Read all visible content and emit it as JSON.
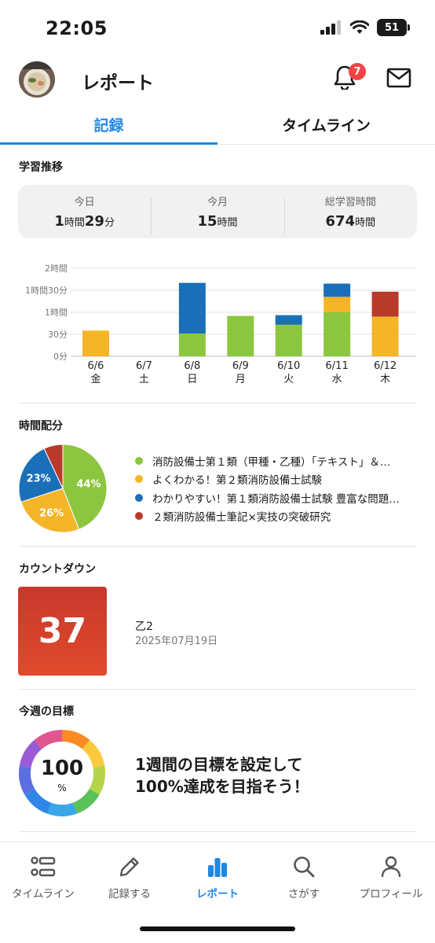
{
  "status_bar": {
    "time": "22:05",
    "battery": "51"
  },
  "header": {
    "title": "レポート",
    "notification_count": "7"
  },
  "tabs": [
    {
      "label": "記録",
      "active": true
    },
    {
      "label": "タイムライン",
      "active": false
    }
  ],
  "study_trend": {
    "title": "学習推移",
    "stats": [
      {
        "label": "今日",
        "parts": [
          "1",
          "時間",
          "29",
          "分"
        ]
      },
      {
        "label": "今月",
        "parts": [
          "15",
          "時間"
        ]
      },
      {
        "label": "総学習時間",
        "parts": [
          "674",
          "時間"
        ]
      }
    ]
  },
  "chart_data": {
    "type": "bar",
    "stacked": true,
    "categories": [
      "6/6",
      "6/7",
      "6/8",
      "6/9",
      "6/10",
      "6/11",
      "6/12"
    ],
    "day_labels": [
      "金",
      "土",
      "日",
      "月",
      "火",
      "水",
      "木"
    ],
    "y_unit": "minutes",
    "ylim": [
      0,
      120
    ],
    "y_ticks": [
      {
        "value": 0,
        "label": "0分"
      },
      {
        "value": 30,
        "label": "30分"
      },
      {
        "value": 60,
        "label": "1時間"
      },
      {
        "value": 90,
        "label": "1時間30分"
      },
      {
        "value": 120,
        "label": "2時間"
      }
    ],
    "series": [
      {
        "color": "#8cc63f",
        "values": [
          0,
          0,
          31,
          55,
          43,
          60,
          0
        ]
      },
      {
        "color": "#f5b528",
        "values": [
          35,
          0,
          0,
          0,
          0,
          21,
          54
        ]
      },
      {
        "color": "#1a6fb8",
        "values": [
          0,
          0,
          69,
          0,
          13,
          18,
          0
        ]
      },
      {
        "color": "#b73a2a",
        "values": [
          0,
          0,
          0,
          0,
          0,
          0,
          34
        ]
      }
    ]
  },
  "time_distribution": {
    "title": "時間配分",
    "slices": [
      {
        "label": "消防設備士第１類（甲種・乙種）「テキスト」＆…",
        "percent": 44,
        "display": "44%",
        "color": "#8cc63f"
      },
      {
        "label": "よくわかる！第２類消防設備士試験",
        "percent": 26,
        "display": "26%",
        "color": "#f5b528"
      },
      {
        "label": "わかりやすい！第１類消防設備士試験 豊富な問題…",
        "percent": 23,
        "display": "23%",
        "color": "#1a6fb8"
      },
      {
        "label": "２類消防設備士筆記×実技の突破研究",
        "percent": 7,
        "display": "",
        "color": "#b73a2a"
      }
    ]
  },
  "countdown": {
    "title": "カウントダウン",
    "days": "37",
    "name": "乙2",
    "date": "2025年07月19日"
  },
  "weekly_goal": {
    "title": "今週の目標",
    "value": "100",
    "unit": "%",
    "message_line1": "1週間の目標を設定して",
    "message_line2": "100%達成を目指そう！",
    "ring_colors": [
      "#f98b20",
      "#fbc93c",
      "#b5d44a",
      "#5ac25a",
      "#3aa7e8",
      "#2f86e6",
      "#5b6fe0",
      "#9a5bd6",
      "#e0568f"
    ]
  },
  "bottom_nav": [
    {
      "label": "タイムライン",
      "icon": "timeline-list-icon",
      "active": false
    },
    {
      "label": "記録する",
      "icon": "pencil-icon",
      "active": false
    },
    {
      "label": "レポート",
      "icon": "bar-chart-icon",
      "active": true
    },
    {
      "label": "さがす",
      "icon": "search-icon",
      "active": false
    },
    {
      "label": "プロフィール",
      "icon": "person-icon",
      "active": false
    }
  ]
}
